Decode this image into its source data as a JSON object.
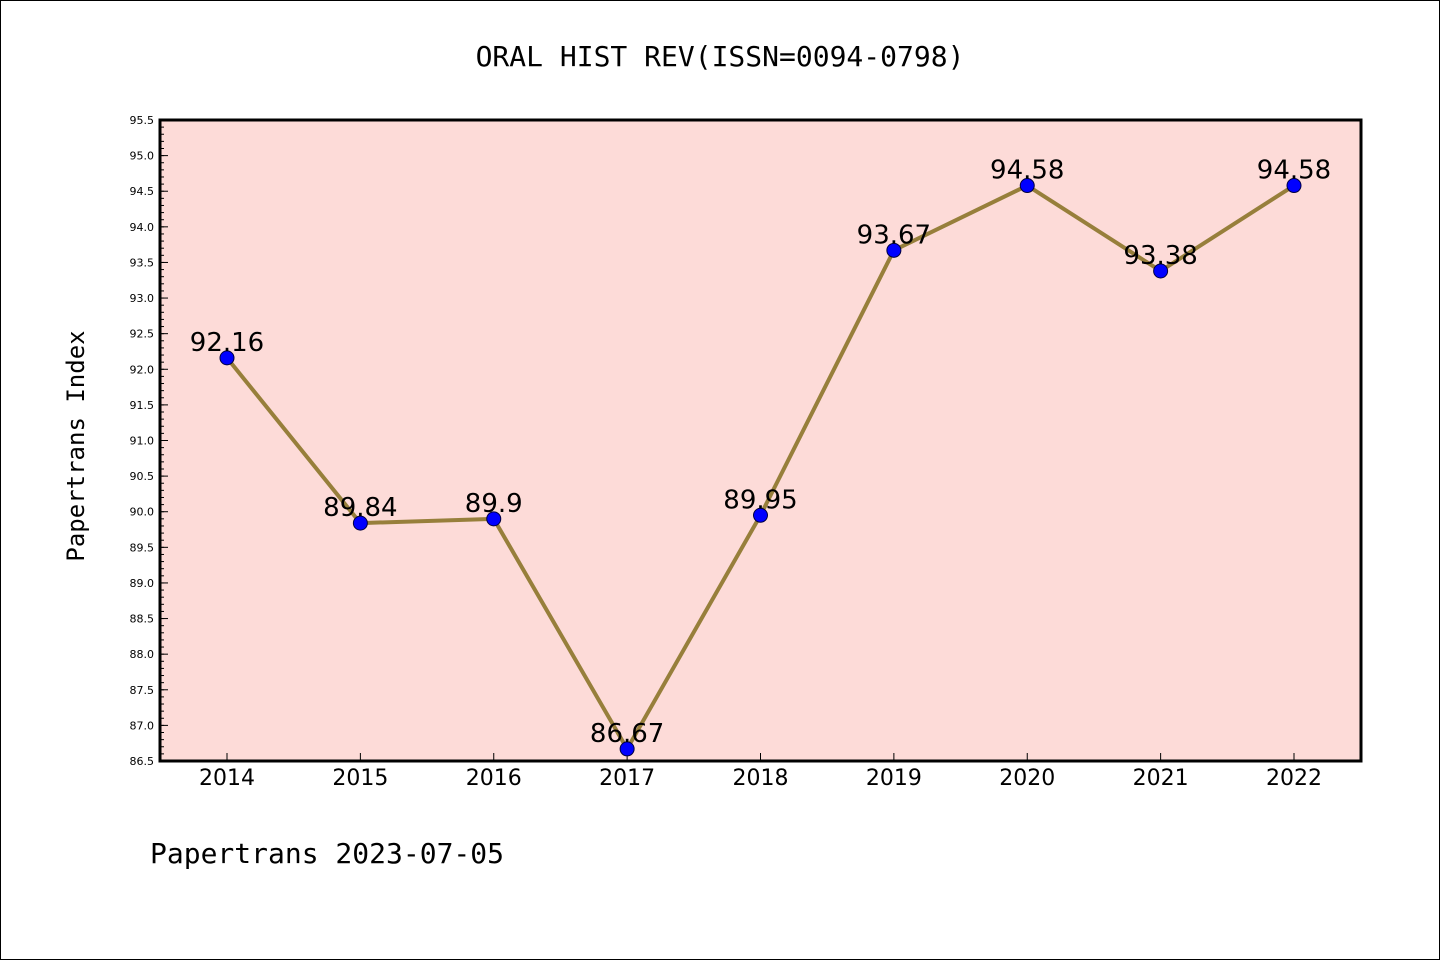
{
  "chart_data": {
    "type": "line",
    "title": "ORAL HIST REV(ISSN=0094-0798)",
    "ylabel": "Papertrans Index",
    "xlabel": "",
    "footer": "Papertrans 2023-07-05",
    "categories": [
      "2014",
      "2015",
      "2016",
      "2017",
      "2018",
      "2019",
      "2020",
      "2021",
      "2022"
    ],
    "series": [
      {
        "values": [
          92.16,
          89.84,
          89.9,
          86.67,
          89.95,
          93.67,
          94.58,
          93.38,
          94.58
        ],
        "labels": [
          "92.16",
          "89.84",
          "89.9",
          "86.67",
          "89.95",
          "93.67",
          "94.58",
          "93.38",
          "94.58"
        ]
      }
    ],
    "ylim": [
      86.5,
      95.5
    ],
    "yticks": [
      "86.5",
      "87.0",
      "87.5",
      "88.0",
      "88.5",
      "89.0",
      "89.5",
      "90.0",
      "90.5",
      "91.0",
      "91.5",
      "92.0",
      "92.5",
      "93.0",
      "93.5",
      "94.0",
      "94.5",
      "95.0",
      "95.5"
    ],
    "grid": false,
    "colors": {
      "plot_background": "#fddbd8",
      "line": "#977f3b",
      "marker": "#0000ff"
    }
  }
}
